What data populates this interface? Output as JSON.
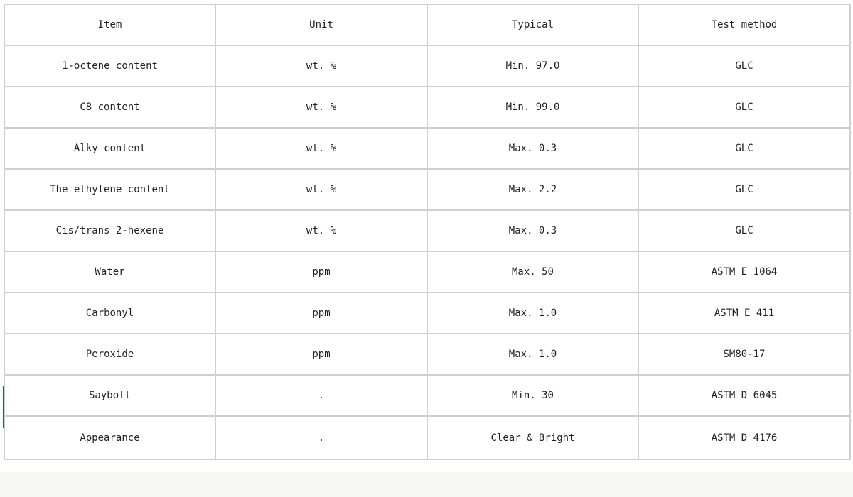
{
  "table": {
    "headers": [
      "Item",
      "Unit",
      "Typical",
      "Test method"
    ],
    "rows": [
      [
        "1-octene content",
        "wt. %",
        "Min. 97.0",
        "GLC"
      ],
      [
        "C8 content",
        "wt. %",
        "Min. 99.0",
        "GLC"
      ],
      [
        "Alky content",
        "wt. %",
        "Max. 0.3",
        "GLC"
      ],
      [
        "The ethylene content",
        "wt. %",
        "Max. 2.2",
        "GLC"
      ],
      [
        "Cis/trans 2-hexene",
        "wt. %",
        "Max. 0.3",
        "GLC"
      ],
      [
        "Water",
        "ppm",
        "Max. 50",
        "ASTM E 1064"
      ],
      [
        "Carbonyl",
        "ppm",
        "Max. 1.0",
        "ASTM E 411"
      ],
      [
        "Peroxide",
        "ppm",
        "Max. 1.0",
        "SM80-17"
      ],
      [
        "Saybolt",
        ".",
        "Min. 30",
        "ASTM D 6045"
      ],
      [
        "Appearance",
        ".",
        "Clear & Bright",
        "ASTM D 4176"
      ]
    ]
  }
}
